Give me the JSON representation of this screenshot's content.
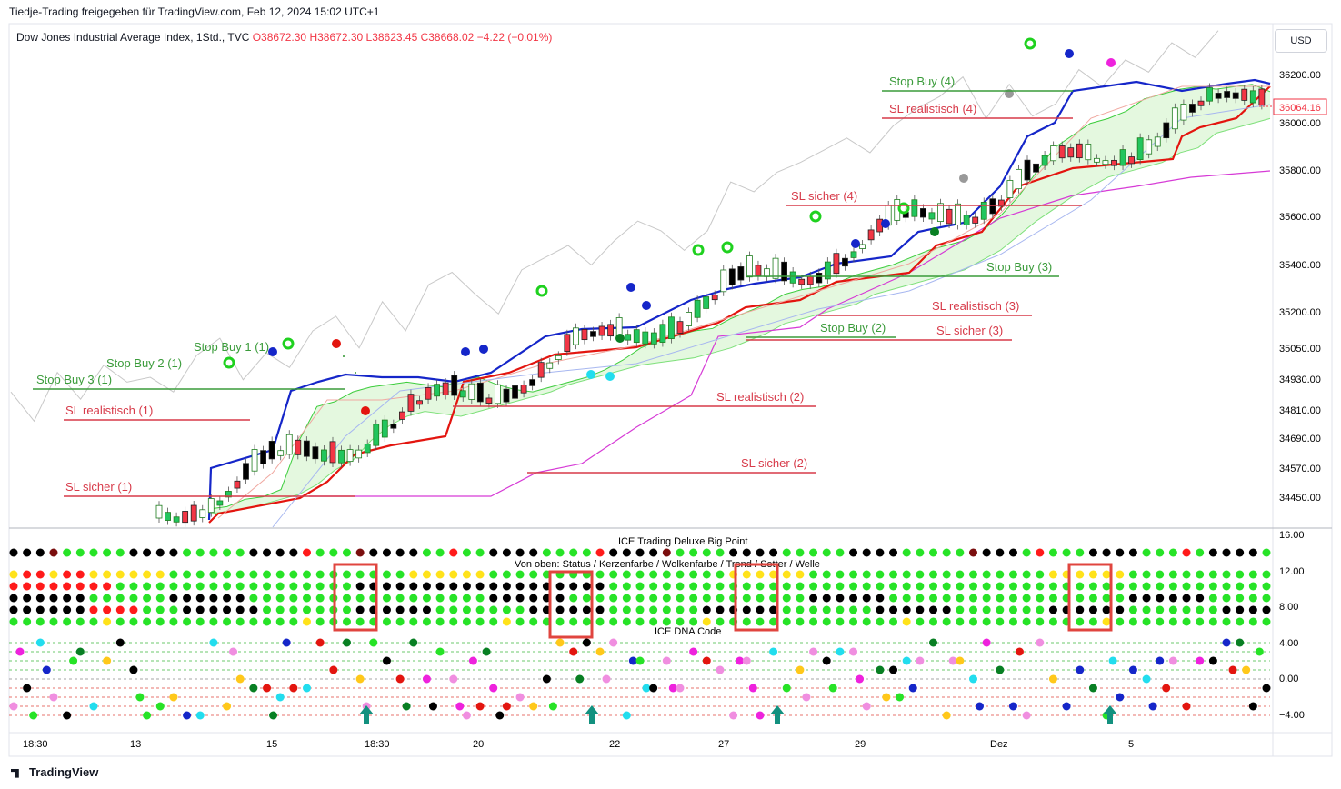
{
  "header": {
    "attribution": "Tiedje-Trading freigegeben für TradingView.com, Feb 12, 2024 15:02 UTC+1",
    "symbol": "Dow Jones Industrial Average Index, 1Std., TVC",
    "ohlc": {
      "o": "O38672.30",
      "h": "H38672.30",
      "l": "L38623.45",
      "c": "C38668.02",
      "chg": "−4.22 (−0.01%)"
    },
    "currency": "USD"
  },
  "footer": {
    "brand": "TradingView"
  },
  "colors": {
    "up": "#22c55e",
    "down": "#f23645",
    "tenkan": "#1526c9",
    "kijun": "#e3150f",
    "cloud": "#d8f5d2",
    "lagging": "#c8c8c8",
    "ssb": "#d63ad6",
    "stop_buy": "#3a9b3a",
    "sl": "#d73a49"
  },
  "chart_data": [
    {
      "type": "line",
      "title": "",
      "y_axis_ticks": [
        "36200.00",
        "36000.00",
        "35800.00",
        "35600.00",
        "35400.00",
        "35200.00",
        "35050.00",
        "34930.00",
        "34810.00",
        "34690.00",
        "34570.00",
        "34450.00"
      ],
      "x_axis_ticks": [
        "18:30",
        "13",
        "15",
        "18:30",
        "20",
        "22",
        "27",
        "29",
        "Dez",
        "5"
      ],
      "last_price": "36064.16",
      "annotations": [
        {
          "label": "Stop Buy 1 (1)",
          "color": "stop_buy"
        },
        {
          "label": "Stop Buy 2 (1)",
          "color": "stop_buy"
        },
        {
          "label": "Stop Buy 3 (1)",
          "color": "stop_buy"
        },
        {
          "label": "SL realistisch (1)",
          "color": "sl"
        },
        {
          "label": "SL sicher (1)",
          "color": "sl"
        },
        {
          "label": "SL realistisch (2)",
          "color": "sl"
        },
        {
          "label": "SL sicher (2)",
          "color": "sl"
        },
        {
          "label": "Stop Buy (2)",
          "color": "stop_buy"
        },
        {
          "label": "Stop Buy (3)",
          "color": "stop_buy"
        },
        {
          "label": "SL realistisch (3)",
          "color": "sl"
        },
        {
          "label": "SL sicher (3)",
          "color": "sl"
        },
        {
          "label": "SL sicher (4)",
          "color": "sl"
        },
        {
          "label": "Stop Buy (4)",
          "color": "stop_buy"
        },
        {
          "label": "SL realistisch (4)",
          "color": "sl"
        }
      ],
      "series": [
        {
          "name": "",
          "values": [
            34420,
            34430,
            34460,
            34470,
            34500,
            34700,
            34840,
            34860,
            34900,
            34920,
            34930,
            34940,
            34930,
            34920,
            34950,
            34960,
            34930,
            34910,
            34900,
            34920,
            34940,
            34960,
            34990,
            35030,
            35080,
            35110,
            35130,
            35150,
            35160,
            35200,
            35230,
            35260,
            35300,
            35320,
            35330,
            35350,
            35380,
            35400,
            35420,
            35450,
            35480,
            35500,
            35520,
            35560,
            35620,
            35700,
            35800,
            35900,
            35950,
            36000,
            36020,
            36050,
            36100,
            36120,
            36140,
            36150,
            36140,
            36150,
            36160,
            36130
          ]
        },
        {
          "name": "",
          "values": [
            34400,
            34410,
            34420,
            34440,
            34460,
            34480,
            34520,
            34580,
            34620,
            34700,
            34760,
            34800,
            34820,
            34810,
            34800,
            34820,
            34840,
            34860,
            34880,
            34900,
            34930,
            34950,
            34970,
            34990,
            35010,
            35020,
            35030,
            35040,
            35060,
            35080,
            35110,
            35140,
            35180,
            35200,
            35220,
            35240,
            35260,
            35300,
            35320,
            35340,
            35360,
            35380,
            35400,
            35440,
            35480,
            35540,
            35600,
            35650,
            35700,
            35740,
            35780,
            35800,
            35820,
            35840,
            35880,
            35900,
            35960,
            35980,
            36000,
            36020
          ]
        }
      ]
    },
    {
      "type": "heatmap",
      "title": "ICE Trading Deluxe Big Point",
      "subtitle": "Von oben: Status / Kerzenfarbe / Wolkenfarbe / Trend / Setter / Welle",
      "y_axis_ticks": [
        "16.00",
        "12.00",
        "8.00"
      ],
      "rows": 6,
      "columns": 95,
      "highlight_labels": [],
      "palette": {
        "g": "#27e327",
        "G": "#1dbf1d",
        "k": "#000000",
        "r": "#ff1a1a",
        "y": "#ffe21a",
        "d": "#7a0e0e"
      }
    },
    {
      "type": "scatter",
      "title": "ICE DNA Code",
      "y_axis_ticks": [
        "4.00",
        "0.00",
        "−4.00"
      ],
      "levels": [
        4,
        3,
        2,
        1,
        0,
        -1,
        -2,
        -3,
        -4
      ]
    }
  ]
}
